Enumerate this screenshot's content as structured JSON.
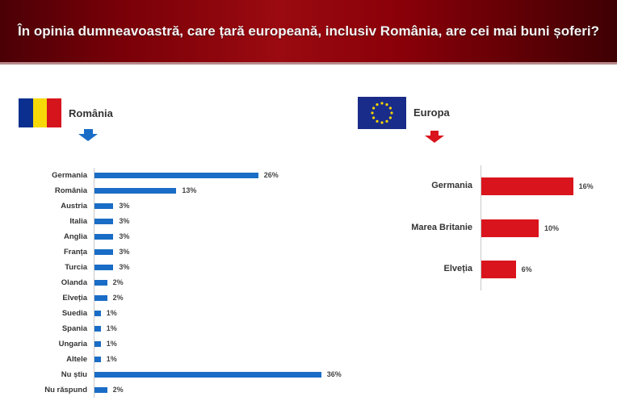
{
  "header": {
    "title": "În opinia dumneavoastră, care țară europeană, inclusiv România, are cei mai buni șoferi?"
  },
  "sections": {
    "romania": {
      "label": "România",
      "flag_icon": "romania-flag-icon",
      "arrow_color": "#1a6dc6"
    },
    "europa": {
      "label": "Europa",
      "flag_icon": "eu-flag-icon",
      "arrow_color": "#d9141c"
    }
  },
  "colors": {
    "header": "#8a0009",
    "romania_bars": "#1a6dc6",
    "europa_bars": "#d9141c"
  },
  "chart_data": [
    {
      "type": "bar",
      "orientation": "horizontal",
      "title": "România",
      "categories": [
        "Germania",
        "România",
        "Austria",
        "Italia",
        "Anglia",
        "Franța",
        "Turcia",
        "Olanda",
        "Elveția",
        "Suedia",
        "Spania",
        "Ungaria",
        "Altele",
        "Nu știu",
        "Nu răspund"
      ],
      "values": [
        26,
        13,
        3,
        3,
        3,
        3,
        3,
        2,
        2,
        1,
        1,
        1,
        1,
        36,
        2
      ],
      "labels": [
        "26%",
        "13%",
        "3%",
        "3%",
        "3%",
        "3%",
        "3%",
        "2%",
        "2%",
        "1%",
        "1%",
        "1%",
        "1%",
        "36%",
        "2%"
      ],
      "xlabel": "",
      "ylabel": "",
      "grid": false
    },
    {
      "type": "bar",
      "orientation": "horizontal",
      "title": "Europa",
      "categories": [
        "Germania",
        "Marea Britanie",
        "Elveția"
      ],
      "values": [
        16,
        10,
        6
      ],
      "labels": [
        "16%",
        "10%",
        "6%"
      ],
      "xlabel": "",
      "ylabel": "",
      "grid": false
    }
  ]
}
